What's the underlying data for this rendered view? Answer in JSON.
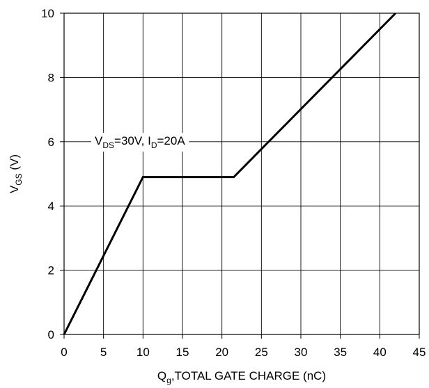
{
  "chart_data": {
    "type": "line",
    "title": "",
    "xlabel": {
      "main": "Q",
      "sub": "g",
      "rest": ",TOTAL GATE CHARGE (nC)"
    },
    "ylabel": {
      "main": "V",
      "sub": "GS",
      "rest": " (V)"
    },
    "xlim": [
      0,
      45
    ],
    "ylim": [
      0,
      10
    ],
    "xticks": [
      0,
      5,
      10,
      15,
      20,
      25,
      30,
      35,
      40,
      45
    ],
    "yticks": [
      0,
      2,
      4,
      6,
      8,
      10
    ],
    "grid": true,
    "annotation": {
      "v": "V",
      "v_sub": "DS",
      "v_rest": "=30V, I",
      "i_sub": "D",
      "i_rest": "=20A"
    },
    "series": [
      {
        "color": "#000000",
        "points": [
          {
            "x": 0,
            "y": 0
          },
          {
            "x": 10,
            "y": 4.9
          },
          {
            "x": 21.5,
            "y": 4.9
          },
          {
            "x": 42,
            "y": 10
          }
        ]
      }
    ]
  }
}
